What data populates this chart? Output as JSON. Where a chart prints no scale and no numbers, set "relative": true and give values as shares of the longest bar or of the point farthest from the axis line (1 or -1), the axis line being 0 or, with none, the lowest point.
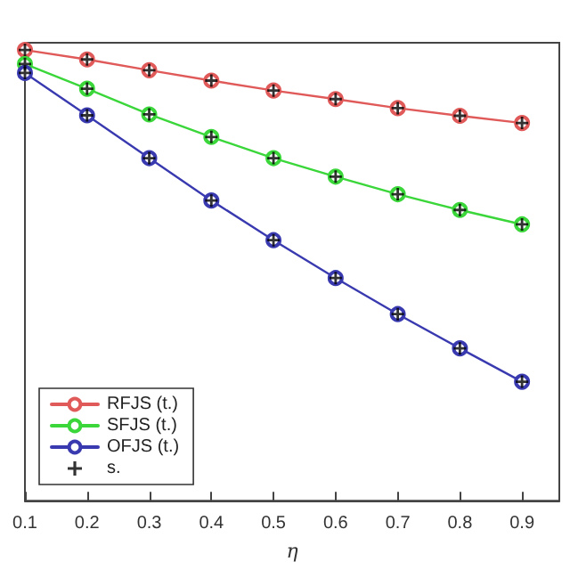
{
  "chart_data": {
    "type": "line",
    "relative": true,
    "xlabel": "η",
    "x": [
      0.1,
      0.2,
      0.3,
      0.4,
      0.5,
      0.6,
      0.7,
      0.8,
      0.9
    ],
    "xlim": [
      0.1,
      0.96
    ],
    "xticks": [
      0.1,
      0.2,
      0.3,
      0.4,
      0.5,
      0.6,
      0.7,
      0.8,
      0.9
    ],
    "grid": false,
    "legend": "bottom left",
    "marker": "circle",
    "line_style": "solid",
    "series": [
      {
        "name": "RFJS (t.)",
        "color": "#e05a5a",
        "values": [
          1,
          0.979,
          0.955,
          0.932,
          0.91,
          0.891,
          0.871,
          0.854,
          0.838
        ]
      },
      {
        "name": "SFJS (t.)",
        "color": "#3ad63a",
        "values": [
          0.969,
          0.914,
          0.857,
          0.807,
          0.76,
          0.719,
          0.68,
          0.645,
          0.613
        ]
      },
      {
        "name": "OFJS (t.)",
        "color": "#3a3ab0",
        "values": [
          0.949,
          0.855,
          0.76,
          0.666,
          0.578,
          0.494,
          0.414,
          0.338,
          0.264
        ]
      },
      {
        "name": "s.",
        "type": "scatter",
        "marker": "cross",
        "color": "#000000",
        "x": [
          0.1,
          0.2,
          0.3,
          0.4,
          0.5,
          0.6,
          0.7,
          0.8,
          0.9,
          0.1,
          0.2,
          0.3,
          0.4,
          0.5,
          0.6,
          0.7,
          0.8,
          0.9,
          0.1,
          0.2,
          0.3,
          0.4,
          0.5,
          0.6,
          0.7,
          0.8,
          0.9
        ],
        "values": [
          1,
          0.979,
          0.955,
          0.932,
          0.91,
          0.891,
          0.871,
          0.854,
          0.838,
          0.969,
          0.914,
          0.857,
          0.807,
          0.76,
          0.719,
          0.68,
          0.645,
          0.613,
          0.949,
          0.855,
          0.76,
          0.666,
          0.578,
          0.494,
          0.414,
          0.338,
          0.264
        ]
      }
    ]
  }
}
